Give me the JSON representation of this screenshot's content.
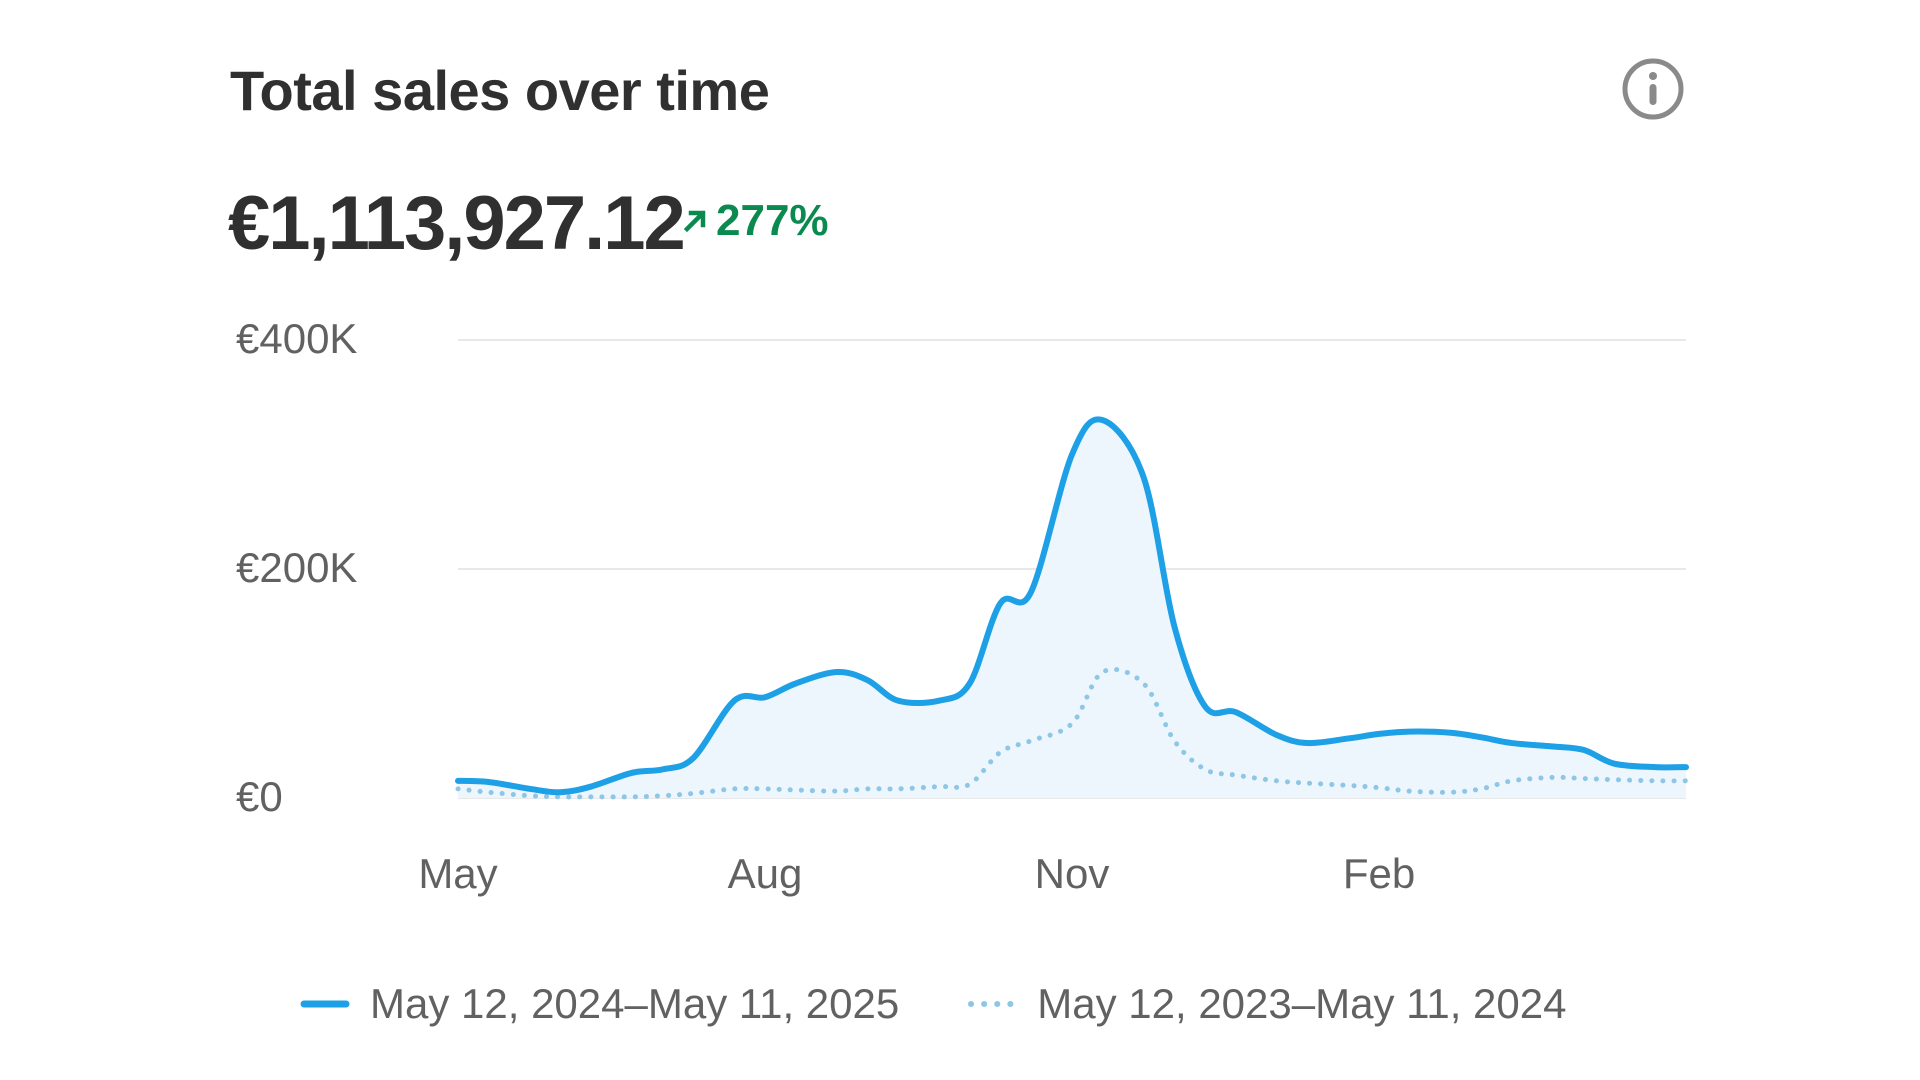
{
  "card": {
    "title": "Total sales over time",
    "total": "€1,113,927.12",
    "change": "277%",
    "info_icon": "info-circle-icon",
    "change_icon": "arrow-up-right-icon"
  },
  "colors": {
    "current": "#1ea0e6",
    "previous": "#8ec6e6",
    "fill": "#eef6fd",
    "grid": "#e8e8e8",
    "positive": "#0a8a4e",
    "text": "#303030",
    "muted": "#616161"
  },
  "chart_data": {
    "type": "area",
    "title": "Total sales over time",
    "xlabel": "",
    "ylabel": "",
    "ylim": [
      0,
      400000
    ],
    "yticks": [
      {
        "value": 400000,
        "label": "€400K"
      },
      {
        "value": 200000,
        "label": "€200K"
      },
      {
        "value": 0,
        "label": "€0"
      }
    ],
    "xlim": [
      0,
      12
    ],
    "xticks": [
      {
        "value": 0,
        "label": "May"
      },
      {
        "value": 3,
        "label": "Aug"
      },
      {
        "value": 6,
        "label": "Nov"
      },
      {
        "value": 9,
        "label": "Feb"
      }
    ],
    "grid": true,
    "legend_position": "bottom",
    "series": [
      {
        "name": "May 12, 2024–May 11, 2025",
        "style": "solid",
        "x": [
          0,
          0.3,
          0.7,
          1.0,
          1.3,
          1.7,
          2.0,
          2.3,
          2.7,
          3.0,
          3.3,
          3.7,
          4.0,
          4.3,
          4.7,
          5.0,
          5.3,
          5.6,
          6.0,
          6.3,
          6.7,
          7.0,
          7.3,
          7.6,
          8.0,
          8.3,
          8.7,
          9.0,
          9.3,
          9.7,
          10.0,
          10.3,
          10.7,
          11.0,
          11.3,
          11.7,
          12.0
        ],
        "values": [
          15000,
          14000,
          8000,
          5000,
          10000,
          22000,
          25000,
          35000,
          85000,
          88000,
          100000,
          110000,
          103000,
          85000,
          85000,
          100000,
          170000,
          180000,
          300000,
          330000,
          280000,
          150000,
          80000,
          75000,
          55000,
          48000,
          52000,
          56000,
          58000,
          57000,
          53000,
          48000,
          45000,
          42000,
          30000,
          27000,
          27000
        ]
      },
      {
        "name": "May 12, 2023–May 11, 2024",
        "style": "dotted",
        "x": [
          0,
          0.3,
          0.7,
          1.0,
          1.3,
          1.7,
          2.0,
          2.3,
          2.7,
          3.0,
          3.3,
          3.7,
          4.0,
          4.3,
          4.7,
          5.0,
          5.3,
          5.6,
          6.0,
          6.3,
          6.7,
          7.0,
          7.3,
          7.6,
          8.0,
          8.3,
          8.7,
          9.0,
          9.3,
          9.7,
          10.0,
          10.3,
          10.7,
          11.0,
          11.3,
          11.7,
          12.0
        ],
        "values": [
          8000,
          5000,
          2000,
          1000,
          1000,
          1000,
          2000,
          4000,
          8000,
          8000,
          7000,
          6000,
          8000,
          8000,
          10000,
          12000,
          40000,
          50000,
          65000,
          110000,
          100000,
          50000,
          25000,
          20000,
          15000,
          13000,
          11000,
          9000,
          6000,
          5000,
          8000,
          15000,
          18000,
          17000,
          16000,
          15000,
          15000
        ]
      }
    ]
  }
}
